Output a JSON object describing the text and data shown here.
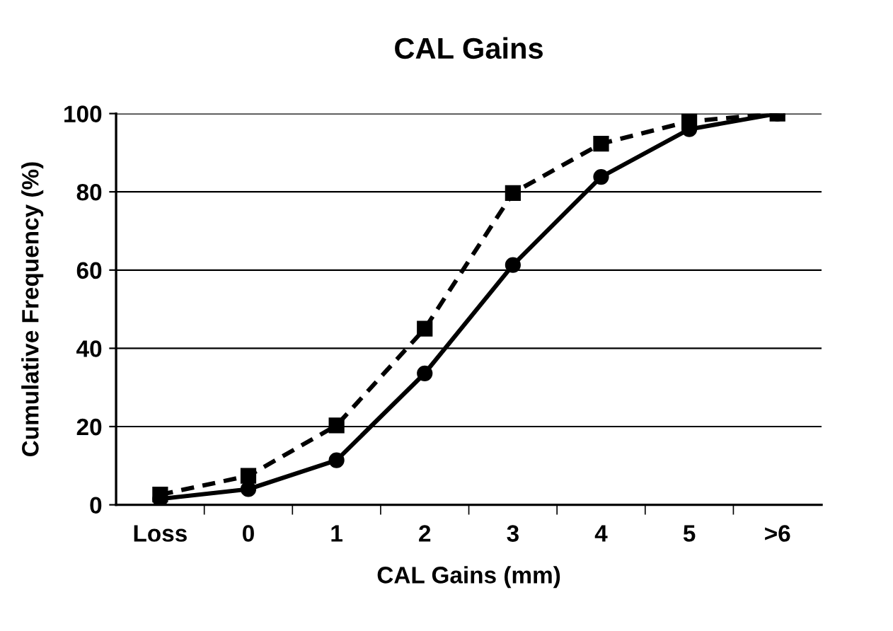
{
  "chart_data": {
    "type": "line",
    "title": "CAL Gains",
    "xlabel": "CAL Gains (mm)",
    "ylabel": "Cumulative Frequency (%)",
    "categories": [
      "Loss",
      "0",
      "1",
      "2",
      "3",
      "4",
      "5",
      ">6"
    ],
    "series": [
      {
        "color": "#000000",
        "marker": "circle",
        "line_style": "solid",
        "values": [
          1.5,
          4,
          11.4,
          33.6,
          61.3,
          83.8,
          96,
          100
        ]
      },
      {
        "color": "#000000",
        "marker": "square",
        "line_style": "dashed",
        "values": [
          2.6,
          7.4,
          20.3,
          45,
          79.7,
          92.3,
          98,
          100
        ]
      }
    ],
    "ylim": [
      0,
      100
    ],
    "yticks": [
      0,
      20,
      40,
      60,
      80,
      100
    ],
    "grid": "y",
    "legend": false
  }
}
